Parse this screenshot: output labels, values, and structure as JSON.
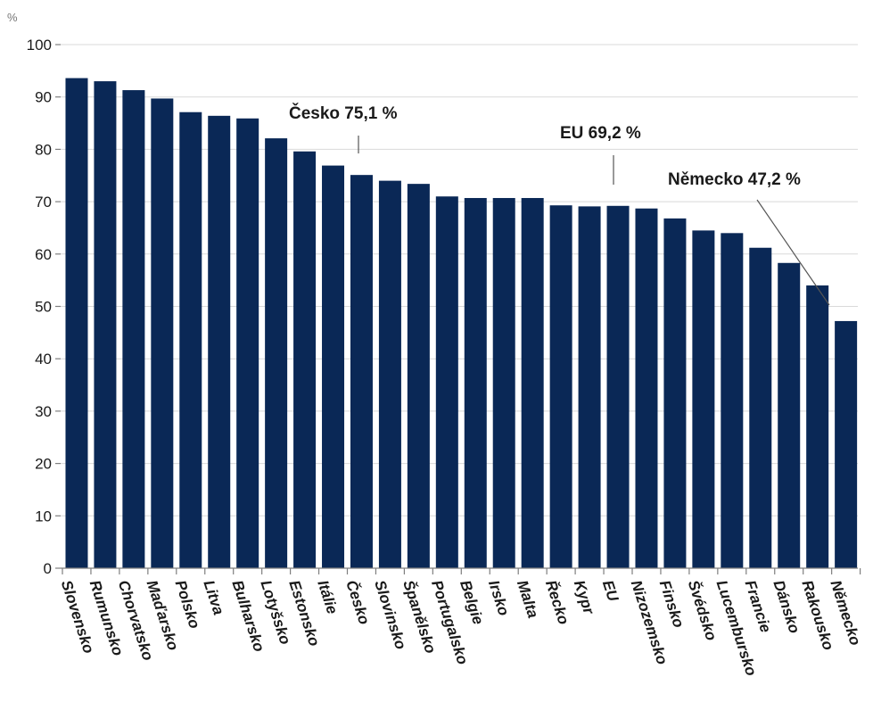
{
  "chart_data": {
    "type": "bar",
    "unit": "%",
    "ylim": [
      0,
      100
    ],
    "yticks": [
      0,
      10,
      20,
      30,
      40,
      50,
      60,
      70,
      80,
      90,
      100
    ],
    "grid": true,
    "bar_color": "#0a2856",
    "categories": [
      "Slovensko",
      "Rumunsko",
      "Chorvatsko",
      "Maďarsko",
      "Polsko",
      "Litva",
      "Bulharsko",
      "Lotyšsko",
      "Estonsko",
      "Itálie",
      "Česko",
      "Slovinsko",
      "Španělsko",
      "Portugalsko",
      "Belgie",
      "Irsko",
      "Malta",
      "Řecko",
      "Kypr",
      "EU",
      "Nizozemsko",
      "Finsko",
      "Švédsko",
      "Lucembursko",
      "Francie",
      "Dánsko",
      "Rakousko",
      "Německo"
    ],
    "values": [
      93.6,
      93.0,
      91.3,
      89.7,
      87.1,
      86.4,
      85.9,
      82.1,
      79.6,
      76.9,
      75.1,
      74.0,
      73.4,
      71.0,
      70.7,
      70.7,
      70.7,
      69.3,
      69.1,
      69.2,
      68.7,
      66.8,
      64.5,
      64.0,
      61.2,
      58.3,
      54.0,
      47.2
    ],
    "annotations": [
      {
        "category": "Česko",
        "text": "Česko 75,1 %"
      },
      {
        "category": "EU",
        "text": "EU 69,2 %"
      },
      {
        "category": "Německo",
        "text": "Německo 47,2 %"
      }
    ]
  }
}
